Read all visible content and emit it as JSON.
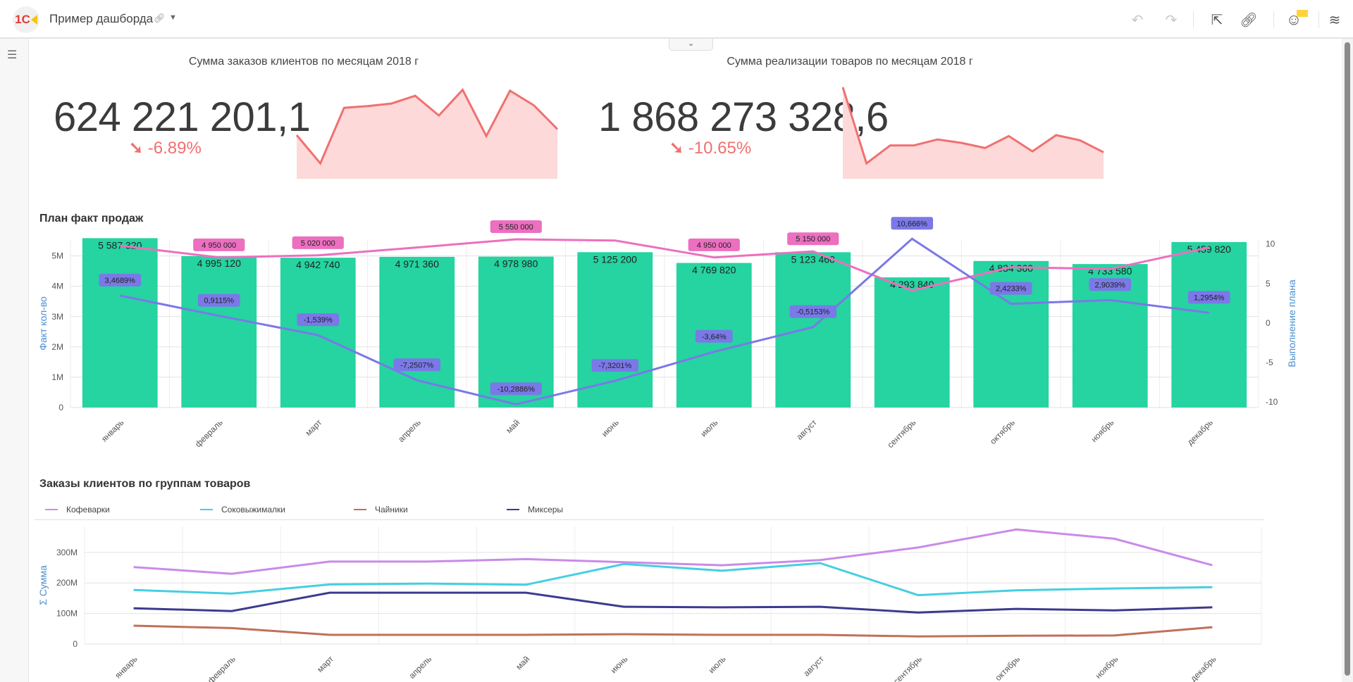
{
  "header": {
    "logo_text": "1С",
    "title": "Пример дашборда",
    "link_icon": "link-icon",
    "caret_icon": "caret-down-icon",
    "toolbar_icons": [
      "undo-icon",
      "redo-icon",
      "open-external-icon",
      "link-icon",
      "feedback-face-icon",
      "waves-menu-icon"
    ]
  },
  "sidebar": {
    "toc_icon": "list-icon"
  },
  "kpi": [
    {
      "title": "Сумма заказов клиентов по месяцам 2018 г",
      "value": "624 221 201,1",
      "delta": "-6.89%",
      "trend": "down",
      "sparkline": [
        51,
        18,
        83,
        85,
        88,
        97,
        74,
        104,
        50,
        103,
        86,
        58
      ]
    },
    {
      "title": "Сумма реализации товаров по месяцам 2018 г",
      "value": "1 868 273 328,6",
      "delta": "-10.65%",
      "trend": "down",
      "sparkline": [
        107,
        18,
        39,
        39,
        46,
        42,
        36,
        50,
        32,
        51,
        45,
        31
      ]
    }
  ],
  "colors": {
    "bar": "#25d4a0",
    "plan": "#ec6fc0",
    "percent": "#7b78e8",
    "kpi": "#f07070",
    "kpi_fill": "#fdd9d9"
  },
  "sections": {
    "plan_fact": "План факт продаж",
    "orders_by_group": "Заказы клиентов по группам товаров"
  },
  "chart_data": [
    {
      "type": "bar",
      "title": "План факт продаж",
      "categories": [
        "январь",
        "февраль",
        "март",
        "апрель",
        "май",
        "июнь",
        "июль",
        "август",
        "сентябрь",
        "октябрь",
        "ноябрь",
        "декабрь"
      ],
      "ylabel": "Факт кол-во",
      "y2label": "Выполнение плана",
      "ylim": [
        0,
        5550000
      ],
      "y2lim": [
        -10.7,
        10.6
      ],
      "yticks": [
        "0",
        "1M",
        "2M",
        "3M",
        "4M",
        "5M"
      ],
      "y2ticks": [
        "-10",
        "-5",
        "0",
        "5",
        "10"
      ],
      "grid": true,
      "series": [
        {
          "kind": "bar",
          "values": [
            5587320,
            4995120,
            4942740,
            4971360,
            4978980,
            5125200,
            4769820,
            5123460,
            4293840,
            4834360,
            4733580,
            5459820
          ],
          "labels": [
            "5 587 320",
            "4 995 120",
            "4 942 740",
            "4 971 360",
            "4 978 980",
            "5 125 200",
            "4 769 820",
            "5 123 460",
            "4 293 840",
            "4 834 360",
            "4 733 580",
            "5 459 820"
          ]
        },
        {
          "kind": "line",
          "axis": "left",
          "values": [
            5340000,
            4950000,
            5020000,
            5280000,
            5550000,
            5510000,
            4950000,
            5150000,
            3860000,
            4630000,
            4570000,
            5280000
          ],
          "labels": [
            "",
            "4 950 000",
            "5 020 000",
            "",
            "5 550 000",
            "",
            "4 950 000",
            "5 150 000",
            "",
            "",
            "",
            ""
          ]
        },
        {
          "kind": "line",
          "axis": "right",
          "values": [
            3.4689,
            0.9115,
            -1.539,
            -7.2507,
            -10.2886,
            -7.3201,
            -3.64,
            -0.5153,
            10.666,
            2.4233,
            2.9039,
            1.2954
          ],
          "labels": [
            "3,4689%",
            "0,9115%",
            "-1,539%",
            "-7,2507%",
            "-10,2886%",
            "-7,3201%",
            "-3,64%",
            "-0,5153%",
            "10,666%",
            "2,4233%",
            "2,9039%",
            "1,2954%"
          ]
        }
      ]
    },
    {
      "type": "line",
      "title": "Заказы клиентов по группам товаров",
      "categories": [
        "январь",
        "февраль",
        "март",
        "апрель",
        "май",
        "июнь",
        "июль",
        "август",
        "сентябрь",
        "октябрь",
        "ноябрь",
        "декабрь"
      ],
      "ylabel": "Σ Сумма",
      "ylim": [
        0,
        385
      ],
      "yticks": [
        "0",
        "100M",
        "200M",
        "300M"
      ],
      "legend": "top-left",
      "grid": true,
      "series": [
        {
          "name": "Кофеварки",
          "color": "#c98be8",
          "values": [
            252,
            230,
            270,
            270,
            278,
            268,
            258,
            275,
            316,
            375,
            345,
            258
          ]
        },
        {
          "name": "Соковыжималки",
          "color": "#45cfe0",
          "values": [
            177,
            165,
            195,
            198,
            194,
            262,
            240,
            265,
            160,
            176,
            182,
            186
          ]
        },
        {
          "name": "Чайники",
          "color": "#c0705a",
          "values": [
            60,
            52,
            30,
            30,
            30,
            32,
            30,
            30,
            25,
            27,
            28,
            55
          ]
        },
        {
          "name": "Миксеры",
          "color": "#3d3a8f",
          "values": [
            117,
            108,
            168,
            168,
            168,
            122,
            120,
            122,
            103,
            115,
            110,
            120
          ]
        }
      ]
    }
  ]
}
